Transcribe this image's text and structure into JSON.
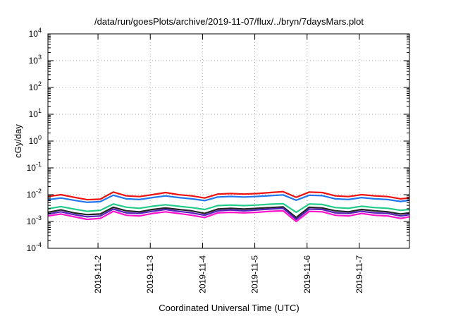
{
  "chart_data": {
    "type": "line",
    "title": "/data/run/goesPlots/archive/2019-11-07/flux/../bryn/7daysMars.plot",
    "xlabel": "Coordinated Universal Time (UTC)",
    "ylabel": "cGy/day",
    "yscale": "log",
    "ylim": [
      0.0001,
      10000
    ],
    "y_tick_labels": [
      {
        "base": "10",
        "exp": "4"
      },
      {
        "base": "10",
        "exp": "3"
      },
      {
        "base": "10",
        "exp": "2"
      },
      {
        "base": "10",
        "exp": "1"
      },
      {
        "base": "10",
        "exp": "0"
      },
      {
        "base": "10",
        "exp": "-1"
      },
      {
        "base": "10",
        "exp": "-2"
      },
      {
        "base": "10",
        "exp": "-3"
      },
      {
        "base": "10",
        "exp": "-4"
      }
    ],
    "xlim": [
      "2019-11-01T01:00",
      "2019-11-07T23:00"
    ],
    "x_tick_labels": [
      "2019-11-2",
      "2019-11-3",
      "2019-11-4",
      "2019-11-5",
      "2019-11-6",
      "2019-11-7"
    ],
    "grid": true,
    "x": [
      "2019-11-01T01:00",
      "2019-11-01T07:00",
      "2019-11-01T13:00",
      "2019-11-01T19:00",
      "2019-11-02T01:00",
      "2019-11-02T07:00",
      "2019-11-02T13:00",
      "2019-11-02T19:00",
      "2019-11-03T01:00",
      "2019-11-03T07:00",
      "2019-11-03T13:00",
      "2019-11-03T19:00",
      "2019-11-04T01:00",
      "2019-11-04T07:00",
      "2019-11-04T13:00",
      "2019-11-04T19:00",
      "2019-11-05T01:00",
      "2019-11-05T07:00",
      "2019-11-05T13:00",
      "2019-11-05T19:00",
      "2019-11-06T01:00",
      "2019-11-06T07:00",
      "2019-11-06T13:00",
      "2019-11-06T19:00",
      "2019-11-07T01:00",
      "2019-11-07T07:00",
      "2019-11-07T13:00",
      "2019-11-07T19:00",
      "2019-11-07T23:00"
    ],
    "series": [
      {
        "color": "#ee1111",
        "values": [
          0.0085,
          0.01,
          0.008,
          0.0065,
          0.0068,
          0.0125,
          0.009,
          0.0085,
          0.01,
          0.012,
          0.01,
          0.009,
          0.0075,
          0.0105,
          0.011,
          0.0105,
          0.011,
          0.012,
          0.013,
          0.008,
          0.0125,
          0.012,
          0.009,
          0.0085,
          0.01,
          0.009,
          0.0085,
          0.007,
          0.0075
        ]
      },
      {
        "color": "#2277ee",
        "values": [
          0.0065,
          0.0075,
          0.0062,
          0.0052,
          0.0055,
          0.0095,
          0.007,
          0.0066,
          0.0078,
          0.009,
          0.0078,
          0.007,
          0.006,
          0.0082,
          0.0086,
          0.0082,
          0.0086,
          0.0092,
          0.0098,
          0.0062,
          0.0095,
          0.0092,
          0.007,
          0.0066,
          0.0078,
          0.007,
          0.0066,
          0.0056,
          0.0062
        ]
      },
      {
        "color": "#22cc88",
        "values": [
          0.003,
          0.0036,
          0.0029,
          0.0024,
          0.0026,
          0.0045,
          0.0034,
          0.0031,
          0.0037,
          0.0042,
          0.0037,
          0.0033,
          0.0028,
          0.0039,
          0.0041,
          0.0039,
          0.0041,
          0.0044,
          0.0046,
          0.0022,
          0.0045,
          0.0043,
          0.0033,
          0.0031,
          0.0037,
          0.0033,
          0.0031,
          0.0026,
          0.0028
        ]
      },
      {
        "color": "#222222",
        "values": [
          0.0022,
          0.0027,
          0.0021,
          0.0018,
          0.0019,
          0.0034,
          0.0025,
          0.0023,
          0.0028,
          0.0032,
          0.0028,
          0.0025,
          0.002,
          0.0029,
          0.0031,
          0.0029,
          0.0031,
          0.0033,
          0.0035,
          0.0014,
          0.0034,
          0.0032,
          0.0025,
          0.0023,
          0.0028,
          0.0025,
          0.0023,
          0.0019,
          0.0021
        ]
      },
      {
        "color": "#5522bb",
        "values": [
          0.0019,
          0.0023,
          0.0018,
          0.0015,
          0.0016,
          0.0029,
          0.0021,
          0.002,
          0.0024,
          0.0028,
          0.0024,
          0.0021,
          0.0017,
          0.0025,
          0.0027,
          0.0025,
          0.0027,
          0.0029,
          0.0031,
          0.0012,
          0.0029,
          0.0028,
          0.0021,
          0.002,
          0.0024,
          0.0021,
          0.002,
          0.0016,
          0.0018
        ]
      },
      {
        "color": "#ff11cc",
        "values": [
          0.0016,
          0.0019,
          0.0015,
          0.0012,
          0.0013,
          0.0024,
          0.0017,
          0.0016,
          0.002,
          0.0023,
          0.002,
          0.0017,
          0.0014,
          0.0021,
          0.0022,
          0.0021,
          0.0022,
          0.0024,
          0.0025,
          0.001,
          0.0024,
          0.0023,
          0.0017,
          0.0016,
          0.002,
          0.0017,
          0.0016,
          0.0013,
          0.0015
        ]
      }
    ]
  }
}
